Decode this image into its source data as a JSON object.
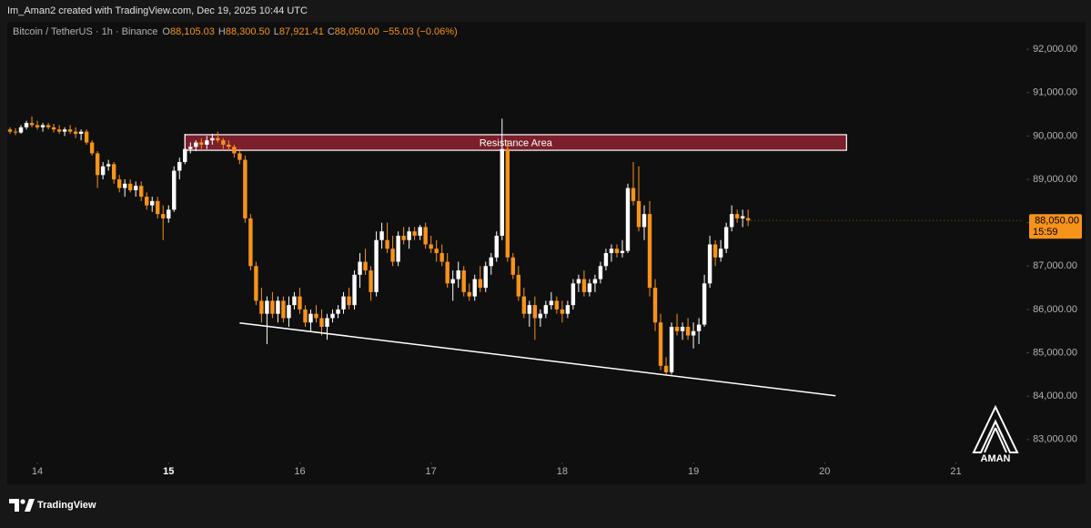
{
  "header": {
    "title": "Im_Aman2 created with TradingView.com, Dec 19, 2025 10:44 UTC"
  },
  "legend": {
    "symbol": "Bitcoin / TetherUS · 1h · Binance",
    "ohlc": [
      {
        "label": "O",
        "value": "88,105.03"
      },
      {
        "label": "H",
        "value": "88,300.50"
      },
      {
        "label": "L",
        "value": "87,921.41"
      },
      {
        "label": "C",
        "value": "88,050.00"
      }
    ],
    "change": "−55.03 (−0.06%)"
  },
  "chart_data": {
    "type": "candlestick",
    "up_color": "#ffffff",
    "down_color": "#f7931a",
    "xlim": [
      -5.5,
      180.4
    ],
    "ylim": [
      82010,
      92590
    ],
    "grid": false,
    "xticks": [
      {
        "value": 0,
        "label": "14"
      },
      {
        "value": 24,
        "label": "15"
      },
      {
        "value": 48,
        "label": "16"
      },
      {
        "value": 72,
        "label": "17"
      },
      {
        "value": 96,
        "label": "18"
      },
      {
        "value": 120,
        "label": "19"
      },
      {
        "value": 144,
        "label": "20"
      },
      {
        "value": 168,
        "label": "21"
      }
    ],
    "yticks": [
      {
        "value": 83000,
        "label": "83,000.00"
      },
      {
        "value": 84000,
        "label": "84,000.00"
      },
      {
        "value": 85000,
        "label": "85,000.00"
      },
      {
        "value": 86000,
        "label": "86,000.00"
      },
      {
        "value": 87000,
        "label": "87,000.00"
      },
      {
        "value": 88000,
        "label": "88,000.00"
      },
      {
        "value": 89000,
        "label": "89,000.00"
      },
      {
        "value": 90000,
        "label": "90,000.00"
      },
      {
        "value": 91000,
        "label": "91,000.00"
      },
      {
        "value": 92000,
        "label": "92,000.00"
      }
    ],
    "x": [
      -5,
      -4,
      -3,
      -2,
      -1,
      0,
      1,
      2,
      3,
      4,
      5,
      6,
      7,
      8,
      9,
      10,
      11,
      12,
      13,
      14,
      15,
      16,
      17,
      18,
      19,
      20,
      21,
      22,
      23,
      24,
      25,
      26,
      27,
      28,
      29,
      30,
      31,
      32,
      33,
      34,
      35,
      36,
      37,
      38,
      39,
      40,
      41,
      42,
      43,
      44,
      45,
      46,
      47,
      48,
      49,
      50,
      51,
      52,
      53,
      54,
      55,
      56,
      57,
      58,
      59,
      60,
      61,
      62,
      63,
      64,
      65,
      66,
      67,
      68,
      69,
      70,
      71,
      72,
      73,
      74,
      75,
      76,
      77,
      78,
      79,
      80,
      81,
      82,
      83,
      84,
      85,
      86,
      87,
      88,
      89,
      90,
      91,
      92,
      93,
      94,
      95,
      96,
      97,
      98,
      99,
      100,
      101,
      102,
      103,
      104,
      105,
      106,
      107,
      108,
      109,
      110,
      111,
      112,
      113,
      114,
      115,
      116,
      117,
      118,
      119,
      120,
      121,
      122,
      123,
      124,
      125,
      126,
      127,
      128,
      129,
      130
    ],
    "candles": [
      [
        90150,
        90200,
        90050,
        90100
      ],
      [
        90100,
        90180,
        90020,
        90080
      ],
      [
        90080,
        90250,
        90050,
        90200
      ],
      [
        90200,
        90350,
        90150,
        90300
      ],
      [
        90300,
        90450,
        90200,
        90250
      ],
      [
        90250,
        90350,
        90150,
        90200
      ],
      [
        90200,
        90300,
        90100,
        90250
      ],
      [
        90250,
        90300,
        90150,
        90200
      ],
      [
        90200,
        90280,
        90080,
        90150
      ],
      [
        90150,
        90250,
        90050,
        90100
      ],
      [
        90100,
        90200,
        90000,
        90150
      ],
      [
        90150,
        90250,
        90050,
        90100
      ],
      [
        90100,
        90200,
        89950,
        90050
      ],
      [
        90050,
        90150,
        89900,
        90100
      ],
      [
        90100,
        90150,
        89800,
        89850
      ],
      [
        89850,
        89900,
        89550,
        89600
      ],
      [
        89600,
        89650,
        88800,
        89100
      ],
      [
        89100,
        89400,
        89000,
        89300
      ],
      [
        89300,
        89450,
        89200,
        89350
      ],
      [
        89350,
        89400,
        88900,
        89000
      ],
      [
        89000,
        89100,
        88700,
        88800
      ],
      [
        88800,
        89000,
        88600,
        88900
      ],
      [
        88900,
        89000,
        88700,
        88750
      ],
      [
        88750,
        88950,
        88600,
        88850
      ],
      [
        88850,
        88950,
        88500,
        88600
      ],
      [
        88600,
        88700,
        88300,
        88400
      ],
      [
        88400,
        88600,
        88250,
        88500
      ],
      [
        88500,
        88600,
        88100,
        88200
      ],
      [
        88200,
        88400,
        87600,
        88100
      ],
      [
        88100,
        88400,
        88000,
        88300
      ],
      [
        88300,
        89300,
        88250,
        89200
      ],
      [
        89200,
        89500,
        89000,
        89400
      ],
      [
        89400,
        90050,
        89350,
        89700
      ],
      [
        89700,
        89850,
        89600,
        89750
      ],
      [
        89750,
        89900,
        89650,
        89850
      ],
      [
        89850,
        89950,
        89700,
        89800
      ],
      [
        89800,
        90000,
        89700,
        89900
      ],
      [
        89900,
        90050,
        89800,
        89950
      ],
      [
        89950,
        90100,
        89850,
        89900
      ],
      [
        89900,
        89950,
        89700,
        89800
      ],
      [
        89800,
        89900,
        89650,
        89750
      ],
      [
        89750,
        89800,
        89500,
        89600
      ],
      [
        89600,
        89700,
        89350,
        89450
      ],
      [
        89450,
        89550,
        88000,
        88100
      ],
      [
        88100,
        88200,
        86900,
        87000
      ],
      [
        87000,
        87100,
        86100,
        86200
      ],
      [
        86200,
        86500,
        85700,
        85900
      ],
      [
        85900,
        86300,
        85200,
        86200
      ],
      [
        86200,
        86400,
        85800,
        85900
      ],
      [
        85900,
        86300,
        85700,
        86200
      ],
      [
        86200,
        86300,
        85700,
        85800
      ],
      [
        85800,
        86300,
        85600,
        86100
      ],
      [
        86100,
        86400,
        86000,
        86300
      ],
      [
        86300,
        86500,
        85900,
        86000
      ],
      [
        86000,
        86100,
        85600,
        85700
      ],
      [
        85700,
        86000,
        85500,
        85900
      ],
      [
        85900,
        86100,
        85700,
        85800
      ],
      [
        85800,
        86000,
        85400,
        85600
      ],
      [
        85600,
        85900,
        85300,
        85800
      ],
      [
        85800,
        86000,
        85700,
        85900
      ],
      [
        85900,
        86100,
        85800,
        86000
      ],
      [
        86000,
        86400,
        85900,
        86300
      ],
      [
        86300,
        86500,
        86000,
        86100
      ],
      [
        86100,
        86900,
        86000,
        86800
      ],
      [
        86800,
        87300,
        86500,
        87100
      ],
      [
        87100,
        87400,
        86800,
        86900
      ],
      [
        86900,
        87000,
        86200,
        86400
      ],
      [
        86400,
        87800,
        86300,
        87600
      ],
      [
        87600,
        88000,
        87400,
        87800
      ],
      [
        87600,
        88000,
        87300,
        87400
      ],
      [
        87400,
        87700,
        87000,
        87100
      ],
      [
        87100,
        87800,
        87000,
        87700
      ],
      [
        87700,
        87900,
        87500,
        87600
      ],
      [
        87600,
        87900,
        87400,
        87800
      ],
      [
        87800,
        87900,
        87600,
        87700
      ],
      [
        87700,
        87950,
        87600,
        87900
      ],
      [
        87900,
        88000,
        87400,
        87500
      ],
      [
        87500,
        87700,
        87300,
        87400
      ],
      [
        87400,
        87600,
        87100,
        87300
      ],
      [
        87300,
        87500,
        87000,
        87100
      ],
      [
        87100,
        87300,
        86500,
        86600
      ],
      [
        86600,
        86900,
        86200,
        86700
      ],
      [
        86700,
        87100,
        86500,
        86900
      ],
      [
        86900,
        87000,
        86300,
        86400
      ],
      [
        86400,
        86600,
        86200,
        86300
      ],
      [
        86300,
        86800,
        86200,
        86700
      ],
      [
        86700,
        87000,
        86400,
        86500
      ],
      [
        86500,
        87100,
        86400,
        87000
      ],
      [
        87000,
        87300,
        86800,
        87200
      ],
      [
        87200,
        87800,
        87100,
        87700
      ],
      [
        87700,
        90400,
        87600,
        89700
      ],
      [
        89700,
        89900,
        87100,
        87200
      ],
      [
        87200,
        87300,
        86700,
        86800
      ],
      [
        86800,
        87000,
        86200,
        86300
      ],
      [
        86300,
        86500,
        85800,
        85900
      ],
      [
        85900,
        86200,
        85600,
        86100
      ],
      [
        86100,
        86300,
        85300,
        85800
      ],
      [
        85800,
        86000,
        85600,
        85900
      ],
      [
        85900,
        86200,
        85800,
        86100
      ],
      [
        86100,
        86400,
        86000,
        86200
      ],
      [
        86200,
        86300,
        85900,
        86000
      ],
      [
        86000,
        86200,
        85700,
        85900
      ],
      [
        85900,
        86200,
        85800,
        86100
      ],
      [
        86100,
        86700,
        86000,
        86600
      ],
      [
        86600,
        86800,
        86400,
        86700
      ],
      [
        86700,
        86900,
        86300,
        86400
      ],
      [
        86400,
        86700,
        86300,
        86600
      ],
      [
        86600,
        86800,
        86400,
        86700
      ],
      [
        86700,
        87100,
        86600,
        87000
      ],
      [
        87000,
        87400,
        86900,
        87300
      ],
      [
        87300,
        87500,
        87100,
        87400
      ],
      [
        87400,
        87500,
        87200,
        87300
      ],
      [
        87300,
        87600,
        87200,
        87350
      ],
      [
        87350,
        88900,
        87300,
        88800
      ],
      [
        88800,
        89400,
        88400,
        88500
      ],
      [
        88500,
        89300,
        87800,
        87900
      ],
      [
        87900,
        88400,
        87600,
        88200
      ],
      [
        88200,
        88500,
        86300,
        86500
      ],
      [
        86500,
        86700,
        85500,
        85700
      ],
      [
        85700,
        85900,
        84600,
        84700
      ],
      [
        84700,
        84900,
        84500,
        84550
      ],
      [
        84550,
        85700,
        84500,
        85600
      ],
      [
        85600,
        85900,
        85400,
        85500
      ],
      [
        85500,
        85700,
        85300,
        85600
      ],
      [
        85600,
        85800,
        85300,
        85400
      ],
      [
        85400,
        85700,
        85100,
        85500
      ],
      [
        85500,
        85800,
        85200,
        85650
      ],
      [
        85650,
        86800,
        85600,
        86600
      ],
      [
        86600,
        87700,
        86500,
        87500
      ],
      [
        87500,
        87600,
        87000,
        87200
      ],
      [
        87200,
        87600,
        87100,
        87400
      ],
      [
        87400,
        88000,
        87300,
        87900
      ],
      [
        87900,
        88400,
        87800,
        88200
      ],
      [
        88200,
        88300,
        88000,
        88100
      ],
      [
        88100,
        88300,
        87900,
        88150
      ],
      [
        88105,
        88300.5,
        87921.41,
        88050
      ]
    ],
    "last_price_label": "88,050.00",
    "countdown": "15:59",
    "resistance": {
      "label": "Resistance Area",
      "x": [
        27,
        148
      ],
      "y": [
        89670,
        90030
      ],
      "color": "#7a1f2b"
    },
    "trendline": {
      "x": [
        37,
        146
      ],
      "y": [
        85690,
        84010
      ],
      "color": "#ffffff"
    }
  },
  "watermark": {
    "text": "AMAN"
  },
  "footer": {
    "brand": "TradingView"
  }
}
